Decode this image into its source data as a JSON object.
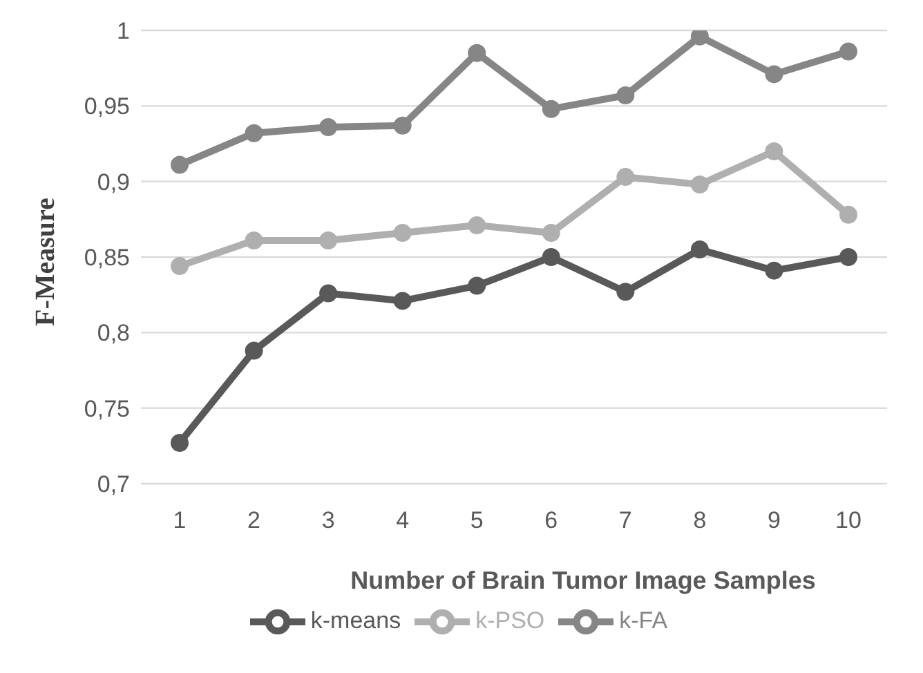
{
  "chart_data": {
    "type": "line",
    "xlabel": "Number of  Brain Tumor  Image Samples",
    "ylabel": "F-Measure",
    "categories": [
      "1",
      "2",
      "3",
      "4",
      "5",
      "6",
      "7",
      "8",
      "9",
      "10"
    ],
    "series": [
      {
        "name": "k-means",
        "color": "#595959",
        "values": [
          0.727,
          0.788,
          0.826,
          0.821,
          0.831,
          0.85,
          0.827,
          0.855,
          0.841,
          0.85
        ]
      },
      {
        "name": "k-PSO",
        "color": "#afafaf",
        "values": [
          0.844,
          0.861,
          0.861,
          0.866,
          0.871,
          0.866,
          0.903,
          0.898,
          0.92,
          0.878
        ]
      },
      {
        "name": "k-FA",
        "color": "#868686",
        "values": [
          0.911,
          0.932,
          0.936,
          0.937,
          0.985,
          0.948,
          0.957,
          0.996,
          0.971,
          0.986
        ]
      }
    ],
    "ylim": [
      0.7,
      1
    ],
    "yticks": [
      {
        "value": 0.7,
        "label": "0,7"
      },
      {
        "value": 0.75,
        "label": "0,75"
      },
      {
        "value": 0.8,
        "label": "0,8"
      },
      {
        "value": 0.85,
        "label": "0,85"
      },
      {
        "value": 0.9,
        "label": "0,9"
      },
      {
        "value": 0.95,
        "label": "0,95"
      },
      {
        "value": 1,
        "label": "1"
      }
    ],
    "grid": "y",
    "legend": "bottom",
    "marker": "circle",
    "line_style": "solid"
  }
}
